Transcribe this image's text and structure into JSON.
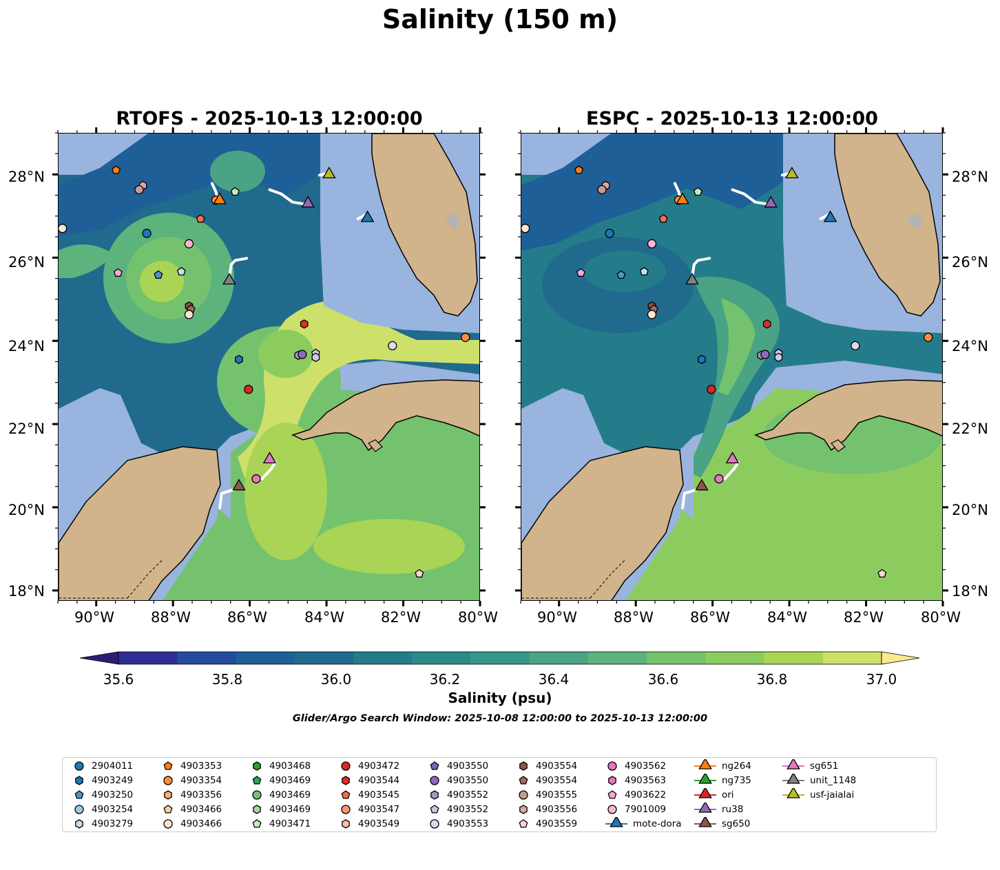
{
  "suptitle": "Salinity (150 m)",
  "panels": [
    {
      "title": "RTOFS - 2025-10-13 12:00:00"
    },
    {
      "title": "ESPC - 2025-10-13 12:00:00"
    }
  ],
  "lon_ticks": [
    "90°W",
    "88°W",
    "86°W",
    "84°W",
    "82°W",
    "80°W"
  ],
  "lat_ticks": [
    "28°N",
    "26°N",
    "24°N",
    "22°N",
    "20°N",
    "18°N"
  ],
  "colorbar": {
    "label": "Salinity (psu)",
    "ticks": [
      "35.6",
      "35.8",
      "36.0",
      "36.2",
      "36.4",
      "36.6",
      "36.8",
      "37.0"
    ],
    "colors": [
      "#2c1d74",
      "#2f2d93",
      "#254c9c",
      "#1f5f98",
      "#206a8e",
      "#247c8b",
      "#2b8a88",
      "#37968a",
      "#49a384",
      "#5cb37c",
      "#74c26d",
      "#8ccc5f",
      "#a9d456",
      "#cde06a",
      "#fbe98e"
    ]
  },
  "colors": {
    "land": "#d1b48c",
    "water": "#99b4de",
    "mask": "#b3b3b3"
  },
  "window_note": "Glider/Argo Search Window: 2025-10-08 12:00:00 to 2025-10-13 12:00:00",
  "legend": [
    {
      "label": "2904011",
      "marker": "circle",
      "color": "#1f77b4"
    },
    {
      "label": "4903249",
      "marker": "hexagon",
      "color": "#1f77b4"
    },
    {
      "label": "4903250",
      "marker": "pentagon",
      "color": "#4b94c9"
    },
    {
      "label": "4903254",
      "marker": "circle",
      "color": "#9ecae1"
    },
    {
      "label": "4903279",
      "marker": "hexagon",
      "color": "#c6dbef"
    },
    {
      "label": "4903353",
      "marker": "pentagon",
      "color": "#ff7f0e"
    },
    {
      "label": "4903354",
      "marker": "circle",
      "color": "#fd8d3c"
    },
    {
      "label": "4903356",
      "marker": "hexagon",
      "color": "#fdae6b"
    },
    {
      "label": "4903466",
      "marker": "pentagon",
      "color": "#fdd0a2"
    },
    {
      "label": "4903466",
      "marker": "circle",
      "color": "#fee6ce"
    },
    {
      "label": "4903468",
      "marker": "hexagon",
      "color": "#2ca02c"
    },
    {
      "label": "4903469",
      "marker": "pentagon",
      "color": "#31a354"
    },
    {
      "label": "4903469",
      "marker": "circle",
      "color": "#74c476"
    },
    {
      "label": "4903469",
      "marker": "hexagon",
      "color": "#a1d99b"
    },
    {
      "label": "4903471",
      "marker": "pentagon",
      "color": "#c7e9c0"
    },
    {
      "label": "4903472",
      "marker": "circle",
      "color": "#d62728"
    },
    {
      "label": "4903544",
      "marker": "hexagon",
      "color": "#de2d26"
    },
    {
      "label": "4903545",
      "marker": "pentagon",
      "color": "#fb6a4a"
    },
    {
      "label": "4903547",
      "marker": "circle",
      "color": "#fc9272"
    },
    {
      "label": "4903549",
      "marker": "hexagon",
      "color": "#fcbba1"
    },
    {
      "label": "4903550",
      "marker": "pentagon",
      "color": "#756bb1"
    },
    {
      "label": "4903550",
      "marker": "circle",
      "color": "#9467bd"
    },
    {
      "label": "4903552",
      "marker": "hexagon",
      "color": "#9e9ac8"
    },
    {
      "label": "4903552",
      "marker": "pentagon",
      "color": "#cbc9e2"
    },
    {
      "label": "4903553",
      "marker": "circle",
      "color": "#dadaeb"
    },
    {
      "label": "4903554",
      "marker": "hexagon",
      "color": "#8c564b"
    },
    {
      "label": "4903554",
      "marker": "pentagon",
      "color": "#a0685c"
    },
    {
      "label": "4903555",
      "marker": "circle",
      "color": "#c49c94"
    },
    {
      "label": "4903556",
      "marker": "hexagon",
      "color": "#d9a89f"
    },
    {
      "label": "4903559",
      "marker": "pentagon",
      "color": "#f7d6cf"
    },
    {
      "label": "4903562",
      "marker": "circle",
      "color": "#e377c2"
    },
    {
      "label": "4903563",
      "marker": "hexagon",
      "color": "#e377c2"
    },
    {
      "label": "4903622",
      "marker": "pentagon",
      "color": "#f7a8d8"
    },
    {
      "label": "7901009",
      "marker": "circle",
      "color": "#f7b6d2"
    },
    {
      "label": "mote-dora",
      "marker": "triangle",
      "color": "#1f77b4"
    },
    {
      "label": "ng264",
      "marker": "triangle",
      "color": "#ff7f0e"
    },
    {
      "label": "ng735",
      "marker": "triangle",
      "color": "#2ca02c"
    },
    {
      "label": "ori",
      "marker": "triangle",
      "color": "#d62728"
    },
    {
      "label": "ru38",
      "marker": "triangle",
      "color": "#9467bd"
    },
    {
      "label": "sg650",
      "marker": "triangle",
      "color": "#8c564b"
    },
    {
      "label": "sg651",
      "marker": "triangle",
      "color": "#e377c2"
    },
    {
      "label": "unit_1148",
      "marker": "triangle",
      "color": "#7f7f7f"
    },
    {
      "label": "usf-jaialai",
      "marker": "triangle",
      "color": "#bcbd22"
    }
  ],
  "map_extent": {
    "lon": [
      -91.0,
      -80.0
    ],
    "lat": [
      17.75,
      29.0
    ]
  },
  "observations": [
    {
      "id": "4903466",
      "marker": "circle",
      "color": "#fee6ce",
      "lon": -90.9,
      "lat": 26.72
    },
    {
      "id": "4903353",
      "marker": "pentagon",
      "color": "#ff7f0e",
      "lon": -89.5,
      "lat": 28.12
    },
    {
      "id": "4903556",
      "marker": "hexagon",
      "color": "#d9a89f",
      "lon": -88.8,
      "lat": 27.75
    },
    {
      "id": "4903555",
      "marker": "circle",
      "color": "#c49c94",
      "lon": -88.9,
      "lat": 27.65
    },
    {
      "id": "2904011",
      "marker": "circle",
      "color": "#1f77b4",
      "lon": -88.7,
      "lat": 26.6
    },
    {
      "id": "4903545",
      "marker": "pentagon",
      "color": "#fb6a4a",
      "lon": -87.3,
      "lat": 26.95
    },
    {
      "id": "4903354",
      "marker": "circle",
      "color": "#fd8d3c",
      "lon": -86.9,
      "lat": 27.4
    },
    {
      "id": "4903471",
      "marker": "pentagon",
      "color": "#c7e9c0",
      "lon": -86.4,
      "lat": 27.6
    },
    {
      "id": "7901009",
      "marker": "circle",
      "color": "#f7b6d2",
      "lon": -87.6,
      "lat": 26.35
    },
    {
      "id": "4903622",
      "marker": "pentagon",
      "color": "#f7a8d8",
      "lon": -89.45,
      "lat": 25.65
    },
    {
      "id": "4903250",
      "marker": "pentagon",
      "color": "#4b94c9",
      "lon": -88.4,
      "lat": 25.6
    },
    {
      "id": "4903279",
      "marker": "pentagon",
      "color": "#c6dbef",
      "lon": -87.8,
      "lat": 25.68
    },
    {
      "id": "4903554",
      "marker": "hexagon",
      "color": "#8c564b",
      "lon": -87.6,
      "lat": 24.85
    },
    {
      "id": "4903554",
      "marker": "pentagon",
      "color": "#a0685c",
      "lon": -87.55,
      "lat": 24.78
    },
    {
      "id": "4903466",
      "marker": "circle",
      "color": "#fee6ce",
      "lon": -87.6,
      "lat": 24.65
    },
    {
      "id": "4903544",
      "marker": "hexagon",
      "color": "#de2d26",
      "lon": -84.6,
      "lat": 24.42
    },
    {
      "id": "4903249",
      "marker": "hexagon",
      "color": "#1f77b4",
      "lon": -86.3,
      "lat": 23.57
    },
    {
      "id": "4903552",
      "marker": "hexagon",
      "color": "#9e9ac8",
      "lon": -84.75,
      "lat": 23.67
    },
    {
      "id": "4903550",
      "marker": "circle",
      "color": "#9467bd",
      "lon": -84.65,
      "lat": 23.69
    },
    {
      "id": "4903552",
      "marker": "pentagon",
      "color": "#cbc9e2",
      "lon": -84.3,
      "lat": 23.72
    },
    {
      "id": "4903552",
      "marker": "hexagon",
      "color": "#cbc9e2",
      "lon": -84.3,
      "lat": 23.62
    },
    {
      "id": "4903553",
      "marker": "circle",
      "color": "#dadaeb",
      "lon": -82.3,
      "lat": 23.9
    },
    {
      "id": "4903354",
      "marker": "circle",
      "color": "#fd8d3c",
      "lon": -80.4,
      "lat": 24.1
    },
    {
      "id": "4903472",
      "marker": "circle",
      "color": "#d62728",
      "lon": -86.05,
      "lat": 22.85
    },
    {
      "id": "4903562",
      "marker": "circle",
      "color": "#e377c2",
      "lon": -85.85,
      "lat": 20.7
    },
    {
      "id": "4903559",
      "marker": "pentagon",
      "color": "#f7d6cf",
      "lon": -81.6,
      "lat": 18.42
    },
    {
      "id": "ng264",
      "marker": "triangle",
      "color": "#ff7f0e",
      "lon": -86.8,
      "lat": 27.38
    },
    {
      "id": "ru38",
      "marker": "triangle",
      "color": "#9467bd",
      "lon": -84.5,
      "lat": 27.3
    },
    {
      "id": "usf-jaialai",
      "marker": "triangle",
      "color": "#bcbd22",
      "lon": -83.95,
      "lat": 28.0
    },
    {
      "id": "mote-dora",
      "marker": "triangle",
      "color": "#1f77b4",
      "lon": -82.95,
      "lat": 26.95
    },
    {
      "id": "unit_1148",
      "marker": "triangle",
      "color": "#7f7f7f",
      "lon": -86.55,
      "lat": 25.45
    },
    {
      "id": "sg651",
      "marker": "triangle",
      "color": "#e377c2",
      "lon": -85.5,
      "lat": 21.15
    },
    {
      "id": "sg650",
      "marker": "triangle",
      "color": "#8c564b",
      "lon": -86.3,
      "lat": 20.5
    }
  ],
  "glider_tracks": [
    [
      [
        -87.0,
        27.8
      ],
      [
        -86.9,
        27.6
      ],
      [
        -86.85,
        27.4
      ]
    ],
    [
      [
        -85.5,
        27.65
      ],
      [
        -85.2,
        27.55
      ],
      [
        -84.9,
        27.35
      ],
      [
        -84.55,
        27.3
      ]
    ],
    [
      [
        -84.2,
        28.0
      ],
      [
        -84.05,
        28.03
      ],
      [
        -84.0,
        28.0
      ]
    ],
    [
      [
        -83.2,
        26.95
      ],
      [
        -83.0,
        27.05
      ],
      [
        -82.95,
        26.95
      ]
    ],
    [
      [
        -86.55,
        25.55
      ],
      [
        -86.5,
        25.85
      ],
      [
        -86.4,
        25.95
      ],
      [
        -86.1,
        26.0
      ]
    ],
    [
      [
        -85.7,
        20.7
      ],
      [
        -85.45,
        20.95
      ],
      [
        -85.35,
        21.1
      ]
    ],
    [
      [
        -86.8,
        20.0
      ],
      [
        -86.75,
        20.35
      ],
      [
        -86.4,
        20.45
      ],
      [
        -86.3,
        20.5
      ]
    ]
  ]
}
